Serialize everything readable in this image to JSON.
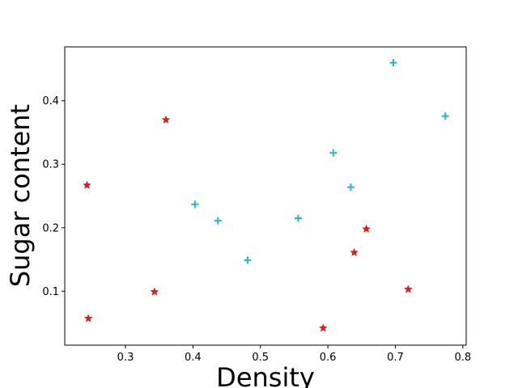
{
  "chart_data": {
    "type": "scatter",
    "title": "",
    "xlabel": "Density",
    "ylabel": "Sugar content",
    "xlim": [
      0.21,
      0.805
    ],
    "ylim": [
      0.015,
      0.485
    ],
    "xticks": [
      0.3,
      0.4,
      0.5,
      0.6,
      0.7,
      0.8
    ],
    "yticks": [
      0.1,
      0.2,
      0.3,
      0.4
    ],
    "xtick_labels": [
      "0.3",
      "0.4",
      "0.5",
      "0.6",
      "0.7",
      "0.8"
    ],
    "ytick_labels": [
      "0.1",
      "0.2",
      "0.3",
      "0.4"
    ],
    "grid": false,
    "legend": "none",
    "series": [
      {
        "marker": "star",
        "color": "#e41a1c",
        "points": [
          {
            "x": 0.243,
            "y": 0.267
          },
          {
            "x": 0.245,
            "y": 0.057
          },
          {
            "x": 0.343,
            "y": 0.099
          },
          {
            "x": 0.36,
            "y": 0.37
          },
          {
            "x": 0.593,
            "y": 0.042
          },
          {
            "x": 0.639,
            "y": 0.161
          },
          {
            "x": 0.657,
            "y": 0.198
          },
          {
            "x": 0.719,
            "y": 0.103
          }
        ]
      },
      {
        "marker": "plus",
        "color": "#17becf",
        "points": [
          {
            "x": 0.403,
            "y": 0.237
          },
          {
            "x": 0.437,
            "y": 0.211
          },
          {
            "x": 0.481,
            "y": 0.149
          },
          {
            "x": 0.556,
            "y": 0.215
          },
          {
            "x": 0.608,
            "y": 0.318
          },
          {
            "x": 0.634,
            "y": 0.264
          },
          {
            "x": 0.697,
            "y": 0.46
          },
          {
            "x": 0.774,
            "y": 0.376
          }
        ]
      }
    ]
  }
}
